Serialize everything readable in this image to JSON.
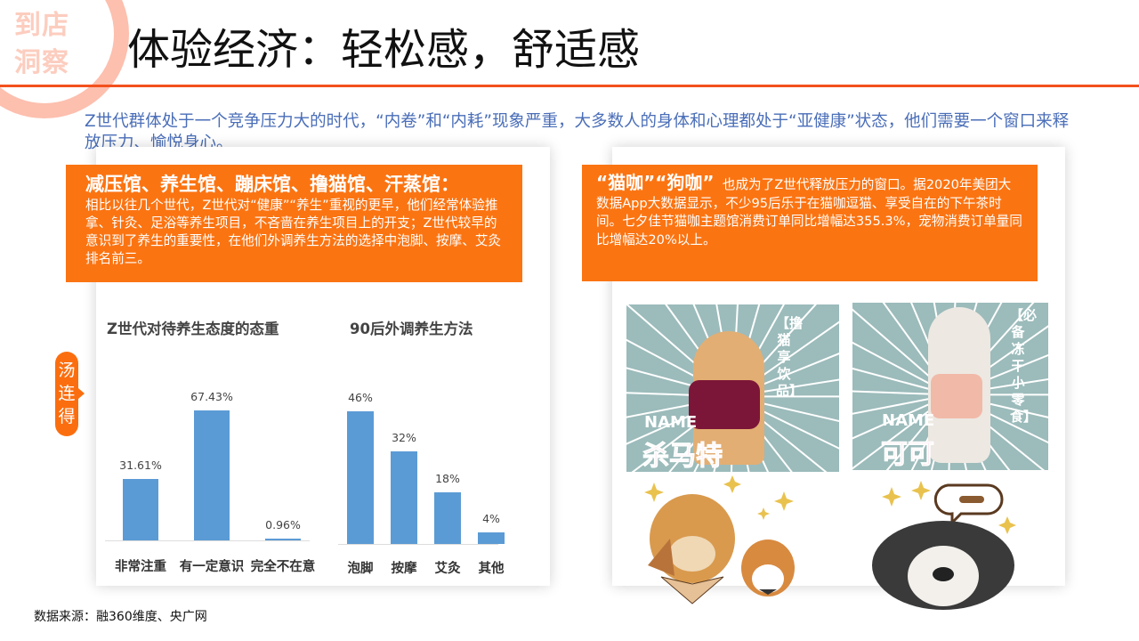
{
  "logo": {
    "text": "到店洞察",
    "line1": "到店",
    "line2": "洞察"
  },
  "title": "体验经济：轻松感，舒适感",
  "intro": "Z世代群体处于一个竞争压力大的时代，“内卷”和“内耗”现象严重，大多数人的身体和心理都处于“亚健康”状态，他们需要一个窗口来释放压力、愉悦身心。",
  "left": {
    "heading": "减压馆、养生馆、蹦床馆、撸猫馆、汗蒸馆：",
    "body": "相比以往几个世代，Z世代对“健康”“养生”重视的更早，他们经常体验推拿、针灸、足浴等养生项目，不吝啬在养生项目上的开支；Z世代较早的意识到了养生的重要性，在他们外调养生方法的选择中泡脚、按摩、艾灸排名前三。"
  },
  "side_tab": "汤连得",
  "right": {
    "heading": "“猫咖”“狗咖”",
    "body": "也成为了Z世代释放压力的窗口。据2020年美团大数据App大数据显示，不少95后乐于在猫咖逗猫、享受自在的下午茶时间。七夕佳节猫咖主题馆消费订单同比增幅达355.3%，宠物消费订单量同比增幅达20%以上。"
  },
  "images": {
    "cat1": {
      "name_label": "NAME",
      "name": "杀马特",
      "tag": "【撸猫享饮品】"
    },
    "cat2": {
      "name_label": "NAME",
      "name": "可可",
      "tag": "【必备冻干小零食】"
    }
  },
  "chart_data": [
    {
      "type": "bar",
      "title": "Z世代对待养生态度的态重",
      "categories": [
        "非常注重",
        "有一定意识",
        "完全不在意"
      ],
      "values": [
        31.61,
        67.43,
        0.96
      ],
      "labels": [
        "31.61%",
        "67.43%",
        "0.96%"
      ],
      "color": "#5B9BD5"
    },
    {
      "type": "bar",
      "title": "90后外调养生方法",
      "categories": [
        "泡脚",
        "按摩",
        "艾灸",
        "其他"
      ],
      "values": [
        46,
        32,
        18,
        4
      ],
      "labels": [
        "46%",
        "32%",
        "18%",
        "4%"
      ],
      "color": "#5B9BD5"
    }
  ],
  "footer": "数据来源：融360维度、央广网",
  "colors": {
    "accent": "#FB7412",
    "rule": "#F4511E",
    "intro": "#4A6EB8",
    "bar": "#5B9BD5"
  }
}
